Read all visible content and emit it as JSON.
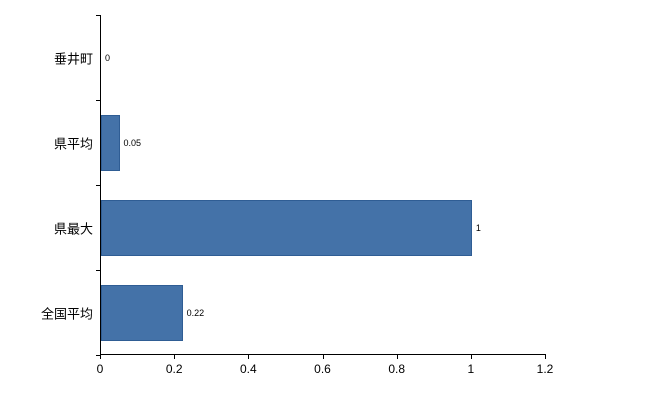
{
  "chart_data": {
    "type": "bar",
    "orientation": "horizontal",
    "title": "",
    "categories": [
      "垂井町",
      "県平均",
      "県最大",
      "全国平均"
    ],
    "values": [
      0,
      0.05,
      1,
      0.22
    ],
    "value_labels": [
      "0",
      "0.05",
      "1",
      "0.22"
    ],
    "x_tick_labels": [
      "0",
      "0.2",
      "0.4",
      "0.6",
      "0.8",
      "1",
      "1.2"
    ],
    "x_tick_values": [
      0,
      0.2,
      0.4,
      0.6,
      0.8,
      1,
      1.2
    ],
    "xlim": [
      0,
      1.2
    ],
    "grid": false,
    "legend": false,
    "bar_color": "#4472a8",
    "bar_border_color": "#2f5d94",
    "axis_color": "#000000",
    "background_color": "#ffffff"
  }
}
